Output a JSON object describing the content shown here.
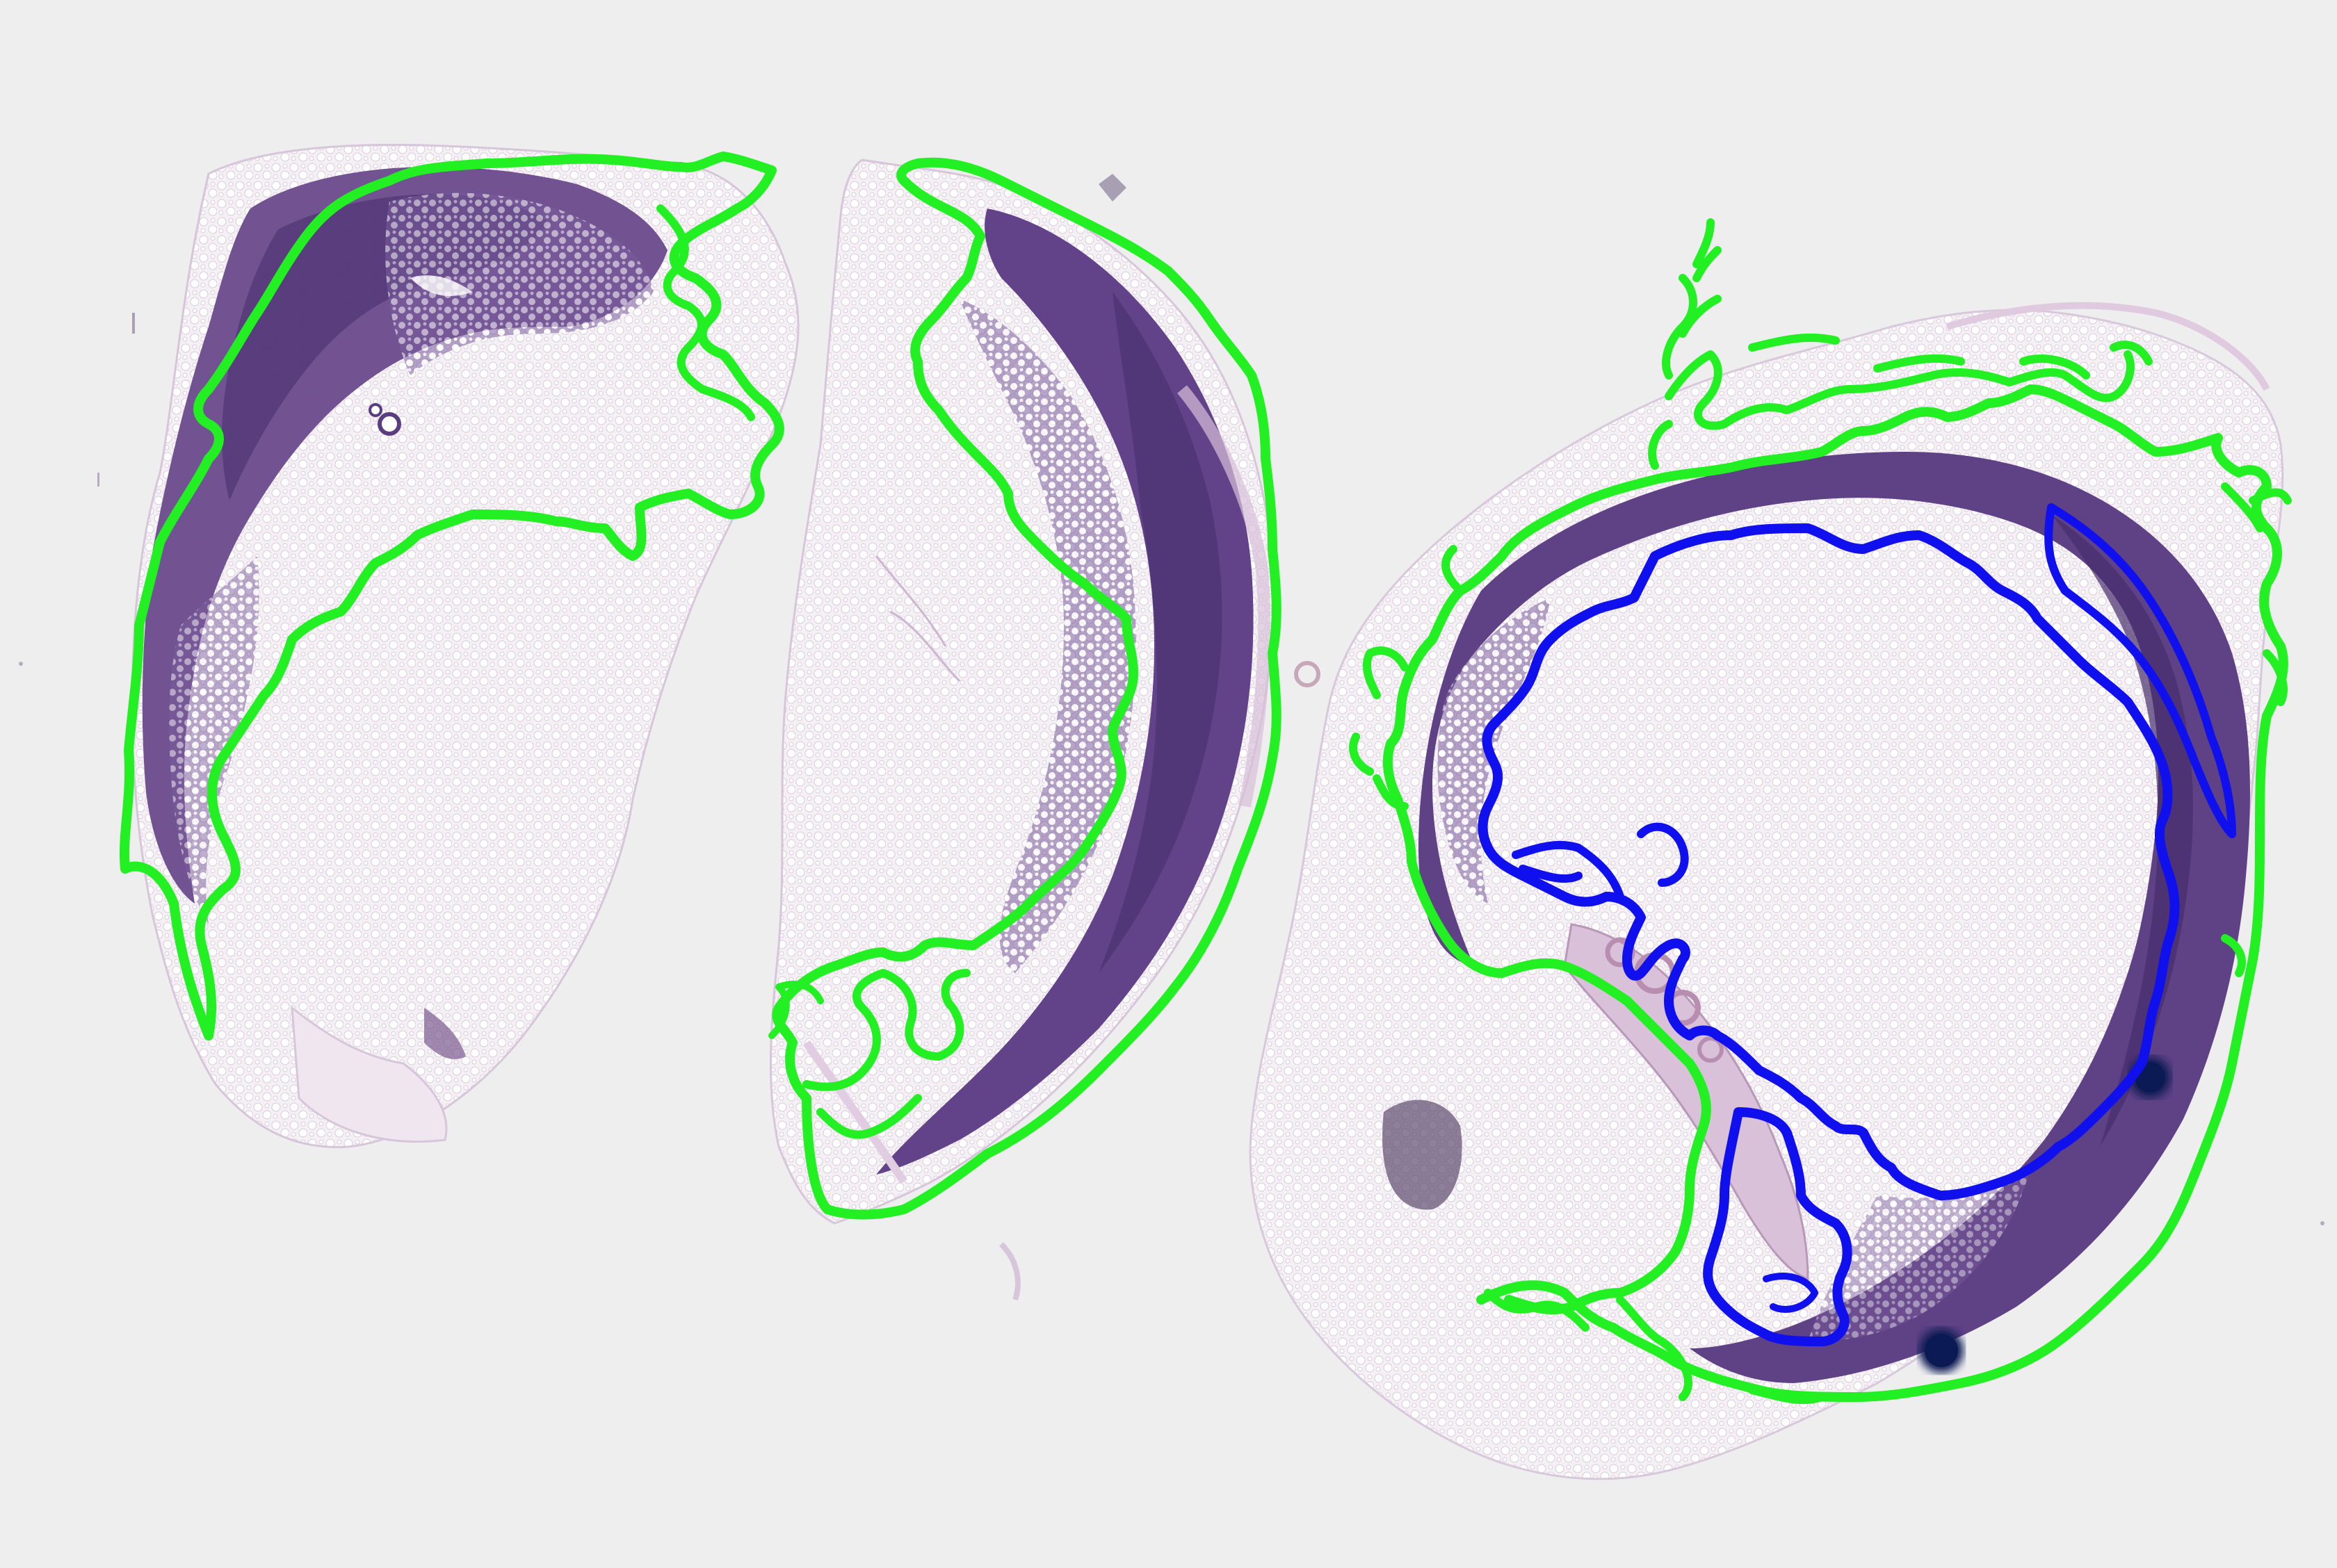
{
  "image": {
    "kind": "histopathology whole-slide image with annotation overlay",
    "background_color": "#efeeef"
  },
  "colors": {
    "tissue_fat": "#f3eef3",
    "tissue_dense": "#6b4b8e",
    "tissue_dense_dark": "#4e3474",
    "tissue_pink": "#d8c3d8",
    "annotation_green": "#22f022",
    "annotation_blue": "#1010ee",
    "ink_blot": "#0b1a55"
  },
  "annotations": [
    {
      "id": "left-section-outline",
      "color_name": "green"
    },
    {
      "id": "middle-section-outline",
      "color_name": "green"
    },
    {
      "id": "right-section-outer-outline",
      "color_name": "green"
    },
    {
      "id": "right-section-inner-outline",
      "color_name": "blue"
    }
  ]
}
